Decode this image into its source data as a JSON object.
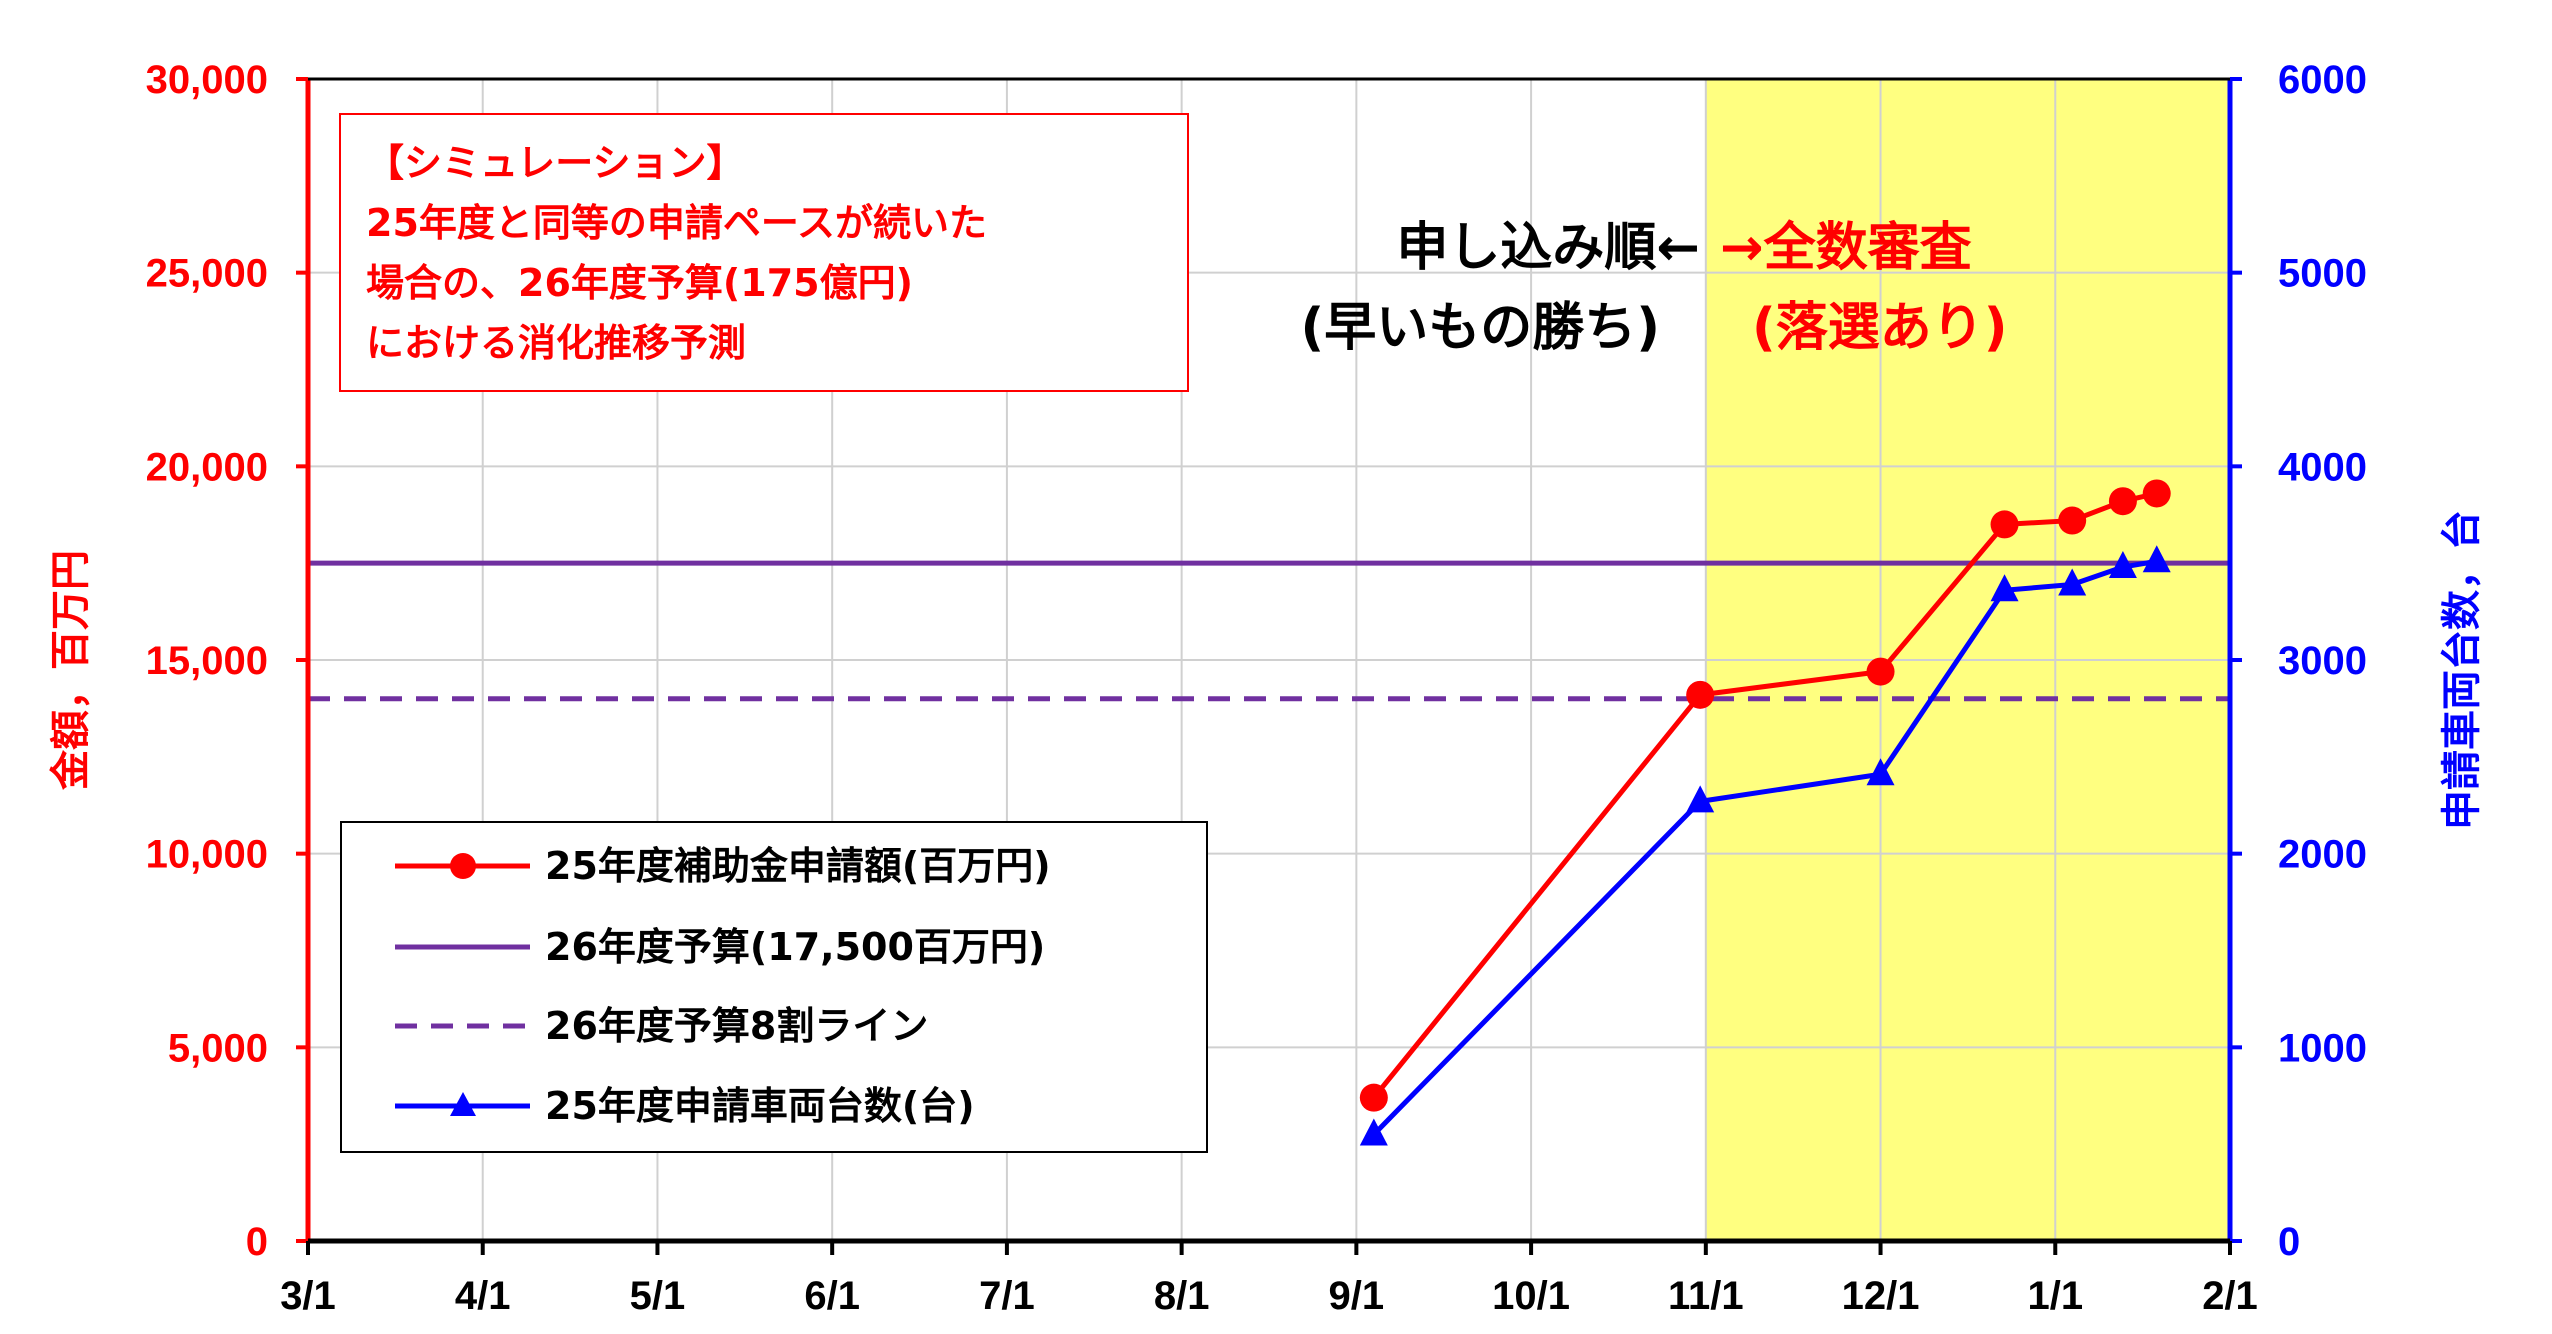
{
  "chart_data": {
    "type": "line",
    "x_ticks": [
      "3/1",
      "4/1",
      "5/1",
      "6/1",
      "7/1",
      "8/1",
      "9/1",
      "10/1",
      "11/1",
      "12/1",
      "1/1",
      "2/1"
    ],
    "y_left": {
      "label": "金額，百万円",
      "ticks": [
        "0",
        "5,000",
        "10,000",
        "15,000",
        "20,000",
        "25,000",
        "30,000"
      ],
      "ylim": [
        0,
        30000
      ]
    },
    "y_right": {
      "label": "申請車両台数，台",
      "ticks": [
        "0",
        "1000",
        "2000",
        "3000",
        "4000",
        "5000",
        "6000"
      ],
      "ylim": [
        0,
        6000
      ]
    },
    "highlight_region": {
      "from": "11/1",
      "to": "2/1",
      "color": "#ffff80"
    },
    "grid": true,
    "legend_position": "bottom-left",
    "series": [
      {
        "name": "25年度補助金申請額(百万円)",
        "axis": "left",
        "color": "#ff0000",
        "marker": "circle",
        "points": [
          [
            "9/4",
            3700
          ],
          [
            "10/31",
            14100
          ],
          [
            "12/1",
            14700
          ],
          [
            "12/23",
            18500
          ],
          [
            "1/4",
            18600
          ],
          [
            "1/13",
            19100
          ],
          [
            "1/19",
            19300
          ]
        ]
      },
      {
        "name": "26年度予算(17,500百万円)",
        "axis": "left",
        "color": "#7030a0",
        "style": "solid",
        "constant": 17500
      },
      {
        "name": "26年度予算8割ライン",
        "axis": "left",
        "color": "#7030a0",
        "style": "dashed",
        "constant": 14000
      },
      {
        "name": "25年度申請車両台数(台)",
        "axis": "right",
        "color": "#0000ff",
        "marker": "triangle",
        "points": [
          [
            "9/4",
            550
          ],
          [
            "10/31",
            2270
          ],
          [
            "12/1",
            2410
          ],
          [
            "12/23",
            3360
          ],
          [
            "1/4",
            3390
          ],
          [
            "1/13",
            3480
          ],
          [
            "1/19",
            3510
          ]
        ]
      }
    ]
  },
  "annotations": {
    "simulation_lines": [
      "【シミュレーション】",
      "25年度と同等の申請ペースが続いた",
      "場合の、26年度予算(175億円)",
      "における消化推移予測"
    ],
    "left_line1": "申し込み順←",
    "left_line2": "(早いもの勝ち)",
    "right_line1": "→全数審査",
    "right_line2": "(落選あり)"
  },
  "colors": {
    "left_axis": "#ff0000",
    "right_axis": "#0000ff",
    "budget": "#7030a0",
    "highlight": "#ffff80"
  }
}
